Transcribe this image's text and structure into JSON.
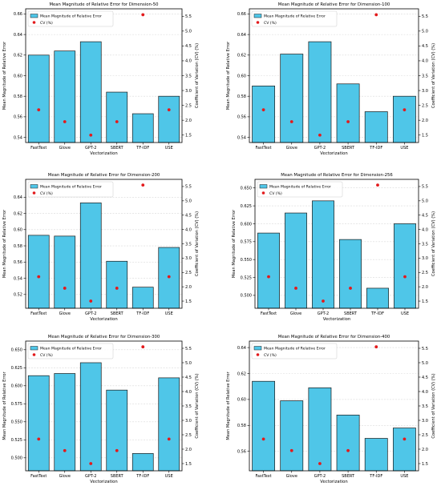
{
  "style": {
    "bar_fill": "#4fc6e8",
    "bar_stroke": "#1a1a1a",
    "point_color": "#e31a1c",
    "grid_color": "#d9d9d9",
    "axis_color": "#000000"
  },
  "chart_data": [
    {
      "type": "bar",
      "title": "Mean Magnitude of Relative Error for Dimension-50",
      "xlabel": "Vectorization",
      "ylabel": "Mean Magnitude of Relative Error",
      "y2label": "Coefficient of Variation (CV) (%)",
      "categories": [
        "FastText",
        "Glove",
        "GPT-2",
        "SBERT",
        "TF-IDF",
        "USE"
      ],
      "legend_position": "top-left",
      "grid": true,
      "ylim": [
        0.535,
        0.665
      ],
      "yticks": [
        0.54,
        0.56,
        0.58,
        0.6,
        0.62,
        0.64,
        0.66
      ],
      "ytick_labels": [
        "0.54",
        "0.56",
        "0.58",
        "0.60",
        "0.62",
        "0.64",
        "0.66"
      ],
      "y2lim": [
        1.25,
        5.75
      ],
      "y2ticks": [
        1.5,
        2.0,
        2.5,
        3.0,
        3.5,
        4.0,
        4.5,
        5.0,
        5.5
      ],
      "y2tick_labels": [
        "1.5",
        "2.0",
        "2.5",
        "3.0",
        "3.5",
        "4.0",
        "4.5",
        "5.0",
        "5.5"
      ],
      "series": [
        {
          "name": "Mean Magnitude of Relative Error",
          "kind": "bar",
          "values": [
            0.62,
            0.624,
            0.633,
            0.584,
            0.563,
            0.58
          ]
        },
        {
          "name": "CV (%)",
          "kind": "scatter",
          "axis": "right",
          "values": [
            2.35,
            1.95,
            1.5,
            1.95,
            5.55,
            2.35
          ]
        }
      ]
    },
    {
      "type": "bar",
      "title": "Mean Magnitude of Relative Error for Dimension-100",
      "xlabel": "Vectorization",
      "ylabel": "Mean Magnitude of Relative Error",
      "y2label": "Coefficient of Variation (CV) (%)",
      "categories": [
        "FastText",
        "Glove",
        "GPT-2",
        "SBERT",
        "TF-IDF",
        "USE"
      ],
      "legend_position": "top-left",
      "grid": true,
      "ylim": [
        0.535,
        0.665
      ],
      "yticks": [
        0.54,
        0.56,
        0.58,
        0.6,
        0.62,
        0.64,
        0.66
      ],
      "ytick_labels": [
        "0.54",
        "0.56",
        "0.58",
        "0.60",
        "0.62",
        "0.64",
        "0.66"
      ],
      "y2lim": [
        1.25,
        5.75
      ],
      "y2ticks": [
        1.5,
        2.0,
        2.5,
        3.0,
        3.5,
        4.0,
        4.5,
        5.0,
        5.5
      ],
      "y2tick_labels": [
        "1.5",
        "2.0",
        "2.5",
        "3.0",
        "3.5",
        "4.0",
        "4.5",
        "5.0",
        "5.5"
      ],
      "series": [
        {
          "name": "Mean Magnitude of Relative Error",
          "kind": "bar",
          "values": [
            0.59,
            0.621,
            0.633,
            0.592,
            0.565,
            0.58
          ]
        },
        {
          "name": "CV (%)",
          "kind": "scatter",
          "axis": "right",
          "values": [
            2.35,
            1.95,
            1.5,
            1.95,
            5.55,
            2.35
          ]
        }
      ]
    },
    {
      "type": "bar",
      "title": "Mean Magnitude of Relative Error for Dimension-200",
      "xlabel": "Vectorization",
      "ylabel": "Mean Magnitude of Relative Error",
      "y2label": "Coefficient of Variation (CV) (%)",
      "categories": [
        "FastText",
        "Glove",
        "GPT-2",
        "SBERT",
        "TF-IDF",
        "USE"
      ],
      "legend_position": "top-left",
      "grid": true,
      "ylim": [
        0.503,
        0.662
      ],
      "yticks": [
        0.52,
        0.54,
        0.56,
        0.58,
        0.6,
        0.62,
        0.64
      ],
      "ytick_labels": [
        "0.52",
        "0.54",
        "0.56",
        "0.58",
        "0.60",
        "0.62",
        "0.64"
      ],
      "y2lim": [
        1.25,
        5.75
      ],
      "y2ticks": [
        1.5,
        2.0,
        2.5,
        3.0,
        3.5,
        4.0,
        4.5,
        5.0,
        5.5
      ],
      "y2tick_labels": [
        "1.5",
        "2.0",
        "2.5",
        "3.0",
        "3.5",
        "4.0",
        "4.5",
        "5.0",
        "5.5"
      ],
      "series": [
        {
          "name": "Mean Magnitude of Relative Error",
          "kind": "bar",
          "values": [
            0.593,
            0.592,
            0.633,
            0.561,
            0.529,
            0.578
          ]
        },
        {
          "name": "CV (%)",
          "kind": "scatter",
          "axis": "right",
          "values": [
            2.35,
            1.95,
            1.5,
            1.95,
            5.55,
            2.35
          ]
        }
      ]
    },
    {
      "type": "bar",
      "title": "Mean Magnitude of Relative Error for Dimension-256",
      "xlabel": "Vectorization",
      "ylabel": "Mean Magnitude of Relative Error",
      "y2label": "Coefficient of Variation (CV) (%)",
      "categories": [
        "FastText",
        "Glove",
        "GPT-2",
        "SBERT",
        "TF-IDF",
        "USE"
      ],
      "legend_position": "top-left",
      "grid": true,
      "ylim": [
        0.482,
        0.662
      ],
      "yticks": [
        0.5,
        0.525,
        0.55,
        0.575,
        0.6,
        0.625,
        0.65
      ],
      "ytick_labels": [
        "0.500",
        "0.525",
        "0.550",
        "0.575",
        "0.600",
        "0.625",
        "0.650"
      ],
      "y2lim": [
        1.25,
        5.75
      ],
      "y2ticks": [
        1.5,
        2.0,
        2.5,
        3.0,
        3.5,
        4.0,
        4.5,
        5.0,
        5.5
      ],
      "y2tick_labels": [
        "1.5",
        "2.0",
        "2.5",
        "3.0",
        "3.5",
        "4.0",
        "4.5",
        "5.0",
        "5.5"
      ],
      "series": [
        {
          "name": "Mean Magnitude of Relative Error",
          "kind": "bar",
          "values": [
            0.587,
            0.615,
            0.632,
            0.578,
            0.51,
            0.6
          ]
        },
        {
          "name": "CV (%)",
          "kind": "scatter",
          "axis": "right",
          "values": [
            2.35,
            1.95,
            1.5,
            1.95,
            5.55,
            2.35
          ]
        }
      ]
    },
    {
      "type": "bar",
      "title": "Mean Magnitude of Relative Error for Dimension-300",
      "xlabel": "Vectorization",
      "ylabel": "Mean Magnitude of Relative Error",
      "y2label": "Coefficient of Variation (CV) (%)",
      "categories": [
        "FastText",
        "Glove",
        "GPT-2",
        "SBERT",
        "TF-IDF",
        "USE"
      ],
      "legend_position": "top-left",
      "grid": true,
      "ylim": [
        0.482,
        0.662
      ],
      "yticks": [
        0.5,
        0.525,
        0.55,
        0.575,
        0.6,
        0.625,
        0.65
      ],
      "ytick_labels": [
        "0.500",
        "0.525",
        "0.550",
        "0.575",
        "0.600",
        "0.625",
        "0.650"
      ],
      "y2lim": [
        1.25,
        5.75
      ],
      "y2ticks": [
        1.5,
        2.0,
        2.5,
        3.0,
        3.5,
        4.0,
        4.5,
        5.0,
        5.5
      ],
      "y2tick_labels": [
        "1.5",
        "2.0",
        "2.5",
        "3.0",
        "3.5",
        "4.0",
        "4.5",
        "5.0",
        "5.5"
      ],
      "series": [
        {
          "name": "Mean Magnitude of Relative Error",
          "kind": "bar",
          "values": [
            0.614,
            0.617,
            0.632,
            0.594,
            0.506,
            0.611
          ]
        },
        {
          "name": "CV (%)",
          "kind": "scatter",
          "axis": "right",
          "values": [
            2.35,
            1.95,
            1.5,
            1.95,
            5.55,
            2.35
          ]
        }
      ]
    },
    {
      "type": "bar",
      "title": "Mean Magnitude of Relative Error for Dimension-400",
      "xlabel": "Vectorization",
      "ylabel": "Mean Magnitude of Relative Error",
      "y2label": "Coefficient of Variation (CV) (%)",
      "categories": [
        "FastText",
        "Glove",
        "GPT-2",
        "SBERT",
        "TF-IDF",
        "USE"
      ],
      "legend_position": "top-left",
      "grid": true,
      "ylim": [
        0.545,
        0.645
      ],
      "yticks": [
        0.56,
        0.58,
        0.6,
        0.62,
        0.64
      ],
      "ytick_labels": [
        "0.56",
        "0.58",
        "0.60",
        "0.62",
        "0.64"
      ],
      "y2lim": [
        1.25,
        5.75
      ],
      "y2ticks": [
        1.5,
        2.0,
        2.5,
        3.0,
        3.5,
        4.0,
        4.5,
        5.0,
        5.5
      ],
      "y2tick_labels": [
        "1.5",
        "2.0",
        "2.5",
        "3.0",
        "3.5",
        "4.0",
        "4.5",
        "5.0",
        "5.5"
      ],
      "series": [
        {
          "name": "Mean Magnitude of Relative Error",
          "kind": "bar",
          "values": [
            0.614,
            0.599,
            0.609,
            0.588,
            0.57,
            0.578
          ]
        },
        {
          "name": "CV (%)",
          "kind": "scatter",
          "axis": "right",
          "values": [
            2.35,
            1.95,
            1.5,
            1.95,
            5.55,
            2.35
          ]
        }
      ]
    }
  ]
}
